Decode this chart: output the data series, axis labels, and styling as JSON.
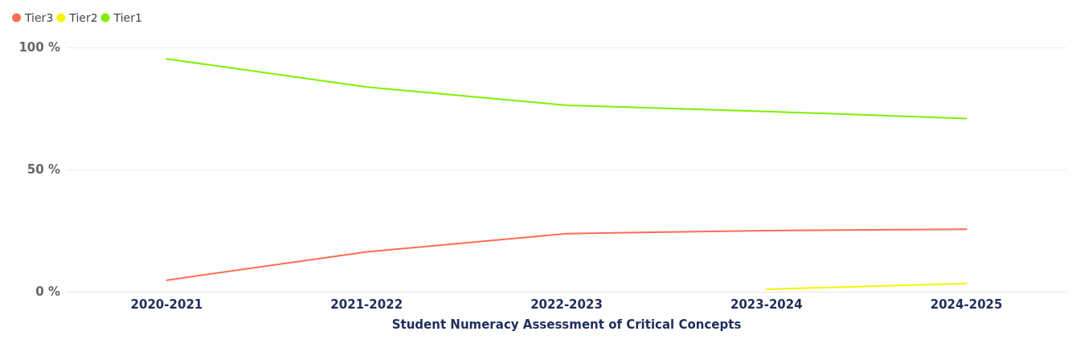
{
  "chart_data": {
    "type": "line",
    "xlabel": "Student Numeracy Assessment of Critical Concepts",
    "categories": [
      "2020-2021",
      "2021-2022",
      "2022-2023",
      "2023-2024",
      "2024-2025"
    ],
    "series": [
      {
        "name": "Tier3",
        "color": "#fd6d52",
        "values": [
          4.7,
          16.3,
          23.8,
          25,
          25.6
        ]
      },
      {
        "name": "Tier2",
        "color": "#f5f500",
        "values": [
          null,
          null,
          null,
          1,
          3.4
        ]
      },
      {
        "name": "Tier1",
        "color": "#7ff000",
        "values": [
          95.3,
          83.8,
          76.3,
          73.8,
          70.9
        ]
      }
    ],
    "ylim": [
      0,
      100
    ],
    "yticks": [
      {
        "value": 0,
        "label": "0 %"
      },
      {
        "value": 50,
        "label": "50 %"
      },
      {
        "value": 100,
        "label": "100 %"
      }
    ],
    "grid": "y",
    "legend": "top left",
    "marker": "none",
    "line_style": "solid"
  }
}
